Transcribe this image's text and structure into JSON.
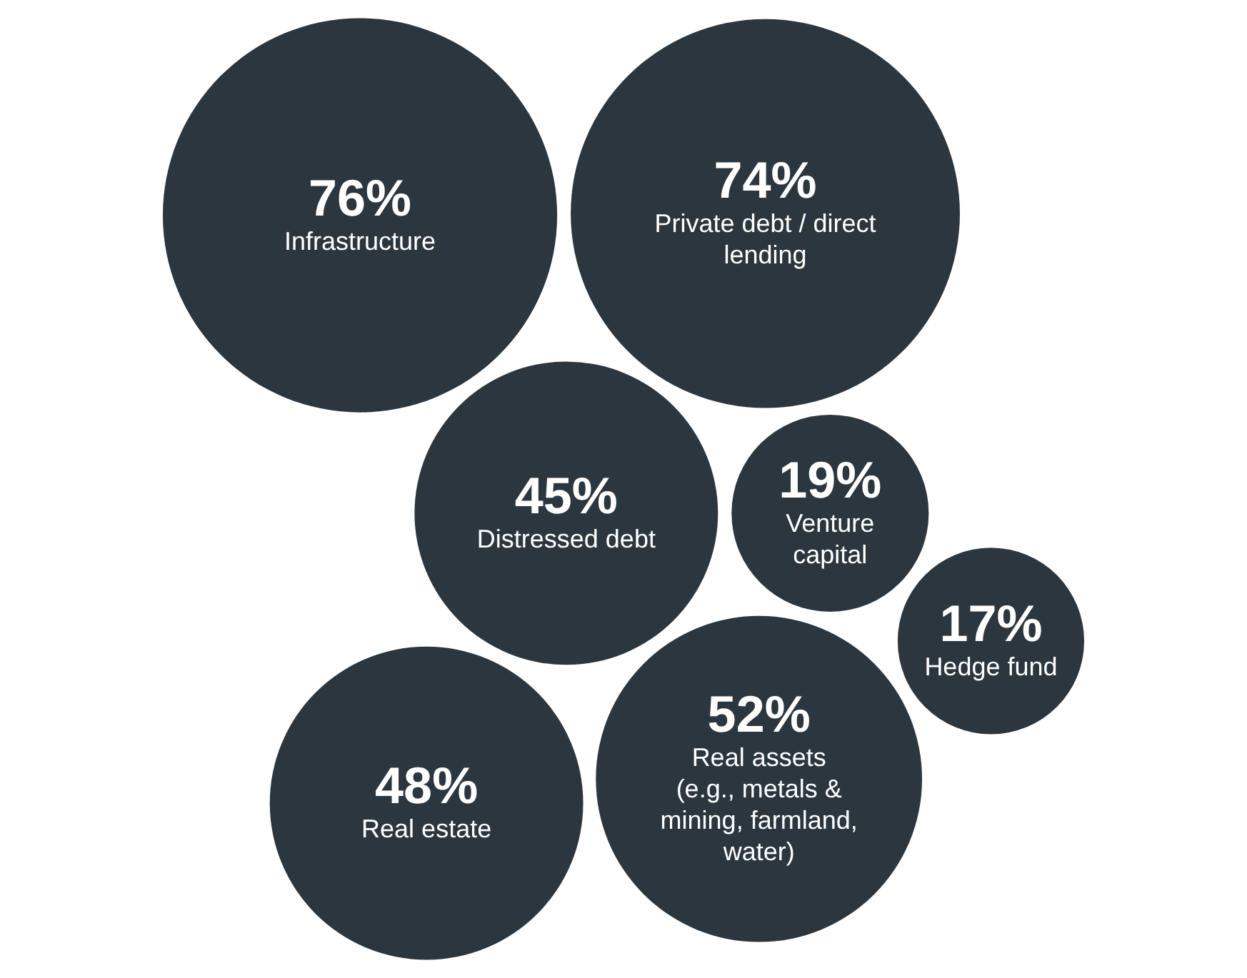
{
  "chart_data": {
    "type": "other",
    "categories": [
      "Distressed debt",
      "Venture capital",
      "Real assets (e.g., metals & mining, farmland, water)",
      "Private debt / direct lending",
      "Real estate",
      "Infrastructure",
      "Hedge fund"
    ],
    "values": [
      45,
      19,
      52,
      74,
      48,
      76,
      17
    ],
    "value_labels": [
      "45%",
      "19%",
      "52%",
      "74%",
      "48%",
      "76%",
      "17%"
    ],
    "color": "#2b363e"
  }
}
